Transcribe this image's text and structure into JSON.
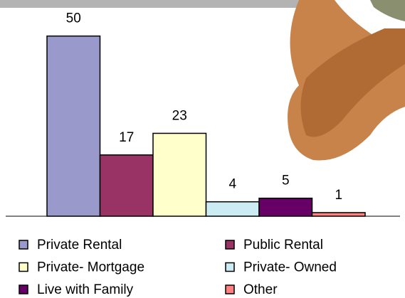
{
  "chart_data": {
    "type": "bar",
    "categories": [
      null
    ],
    "series": [
      {
        "name": "Private Rental",
        "color": "#9999cc",
        "values": [
          50
        ]
      },
      {
        "name": "Public Rental",
        "color": "#993366",
        "values": [
          17
        ]
      },
      {
        "name": "Private- Mortgage",
        "color": "#ffffcc",
        "values": [
          23
        ]
      },
      {
        "name": "Private- Owned",
        "color": "#ccecf4",
        "values": [
          4
        ]
      },
      {
        "name": "Live with Family",
        "color": "#660066",
        "values": [
          5
        ]
      },
      {
        "name": "Other",
        "color": "#ff8080",
        "values": [
          1
        ]
      }
    ],
    "ylim": [
      0,
      60
    ]
  }
}
